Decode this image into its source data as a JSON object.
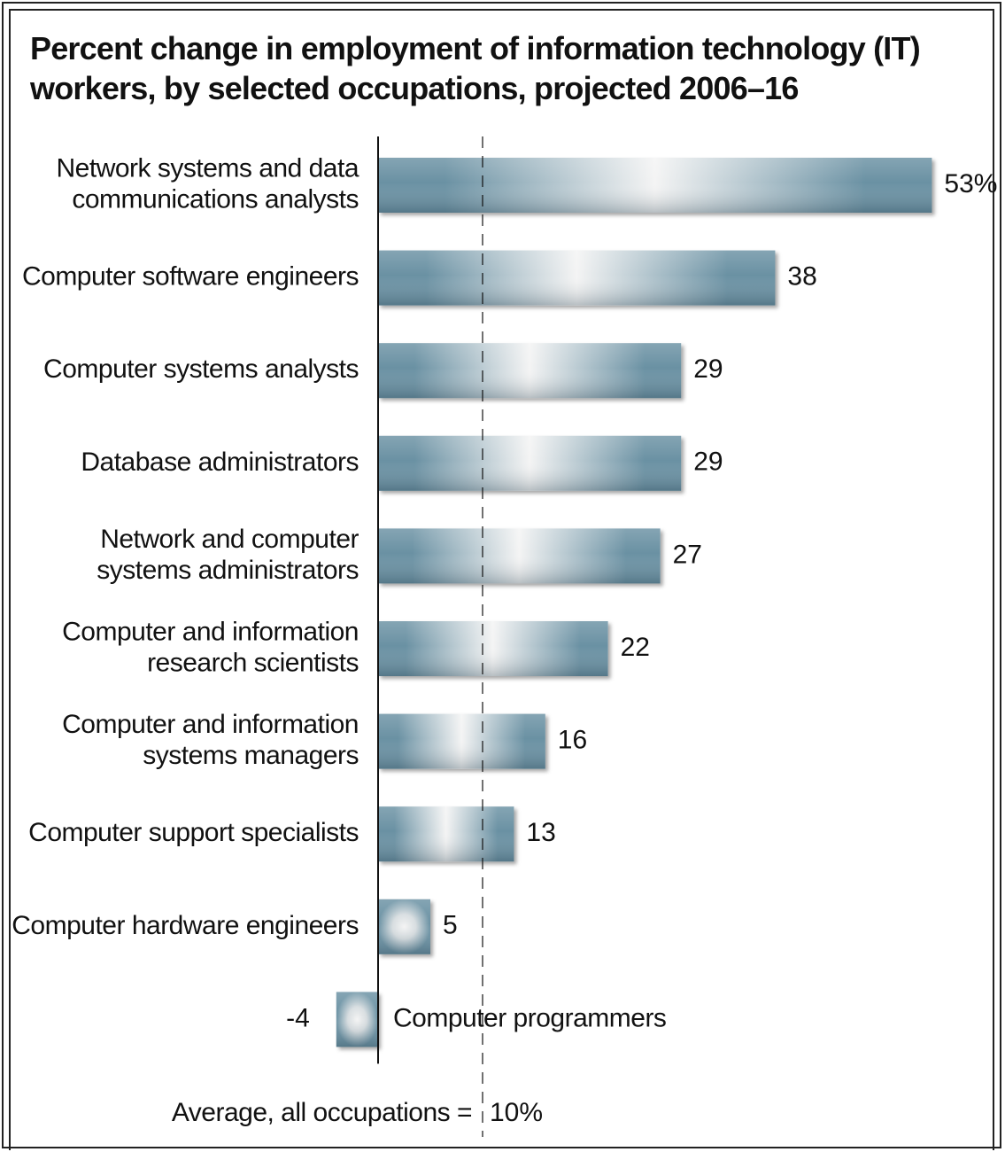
{
  "chart_data": {
    "type": "bar",
    "orientation": "horizontal",
    "title": "Percent change in employment of information technology (IT) workers, by selected occupations, projected 2006–16",
    "xlabel": "",
    "ylabel": "",
    "categories": [
      "Network systems and data communications analysts",
      "Computer software engineers",
      "Computer systems analysts",
      "Database administrators",
      "Network and computer systems administrators",
      "Computer and information research scientists",
      "Computer and information systems managers",
      "Computer support specialists",
      "Computer hardware engineers",
      "Computer programmers"
    ],
    "category_lines": [
      [
        "Network systems and data",
        "communications analysts"
      ],
      [
        "Computer software engineers"
      ],
      [
        "Computer systems analysts"
      ],
      [
        "Database administrators"
      ],
      [
        "Network and computer",
        "systems administrators"
      ],
      [
        "Computer and information",
        "research scientists"
      ],
      [
        "Computer and information",
        "systems managers"
      ],
      [
        "Computer support specialists"
      ],
      [
        "Computer hardware engineers"
      ],
      [
        "Computer programmers"
      ]
    ],
    "values": [
      53,
      38,
      29,
      29,
      27,
      22,
      16,
      13,
      5,
      -4
    ],
    "value_labels": [
      "53%",
      "38",
      "29",
      "29",
      "27",
      "22",
      "16",
      "13",
      "5",
      "-4"
    ],
    "reference_line": {
      "value": 10,
      "label": "Average, all occupations =",
      "value_label": "10%",
      "style": "dashed"
    },
    "xlim": [
      -4,
      53
    ],
    "grid": false,
    "legend": "none",
    "bar_color": "#6a91a3",
    "bar_highlight_color": "#f4f4f4"
  }
}
